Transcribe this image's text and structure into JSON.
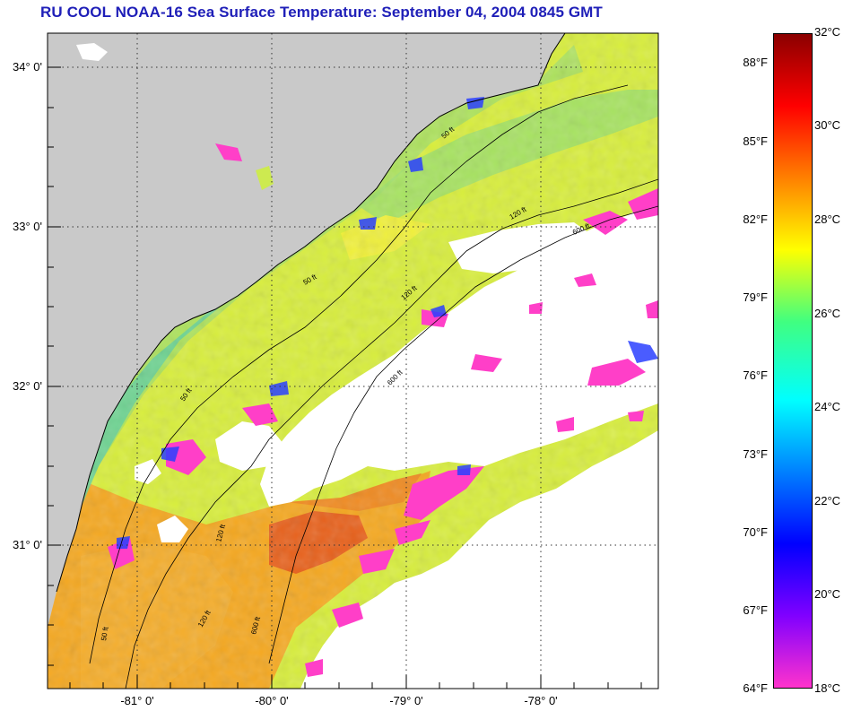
{
  "title": "RU COOL  NOAA-16  Sea Surface Temperature:  September 04, 2004 0845 GMT",
  "map": {
    "lat_labels": [
      "34° 0'",
      "33° 0'",
      "32° 0'",
      "31° 0'"
    ],
    "lon_labels": [
      "-81° 0'",
      "-80° 0'",
      "-79° 0'",
      "-78° 0'"
    ],
    "contour_labels": [
      "50 ft",
      "50 ft",
      "50 ft",
      "50 ft",
      "120 ft",
      "120 ft",
      "120 ft",
      "120 ft",
      "600 ft",
      "600 ft",
      "600 ft"
    ],
    "colors": {
      "land": "#c9c9c9",
      "clouds": "#ffffff",
      "grid": "#333333",
      "coast": "#000000"
    }
  },
  "colorbar": {
    "fahrenheit_labels": [
      "88°F",
      "85°F",
      "82°F",
      "79°F",
      "76°F",
      "73°F",
      "70°F",
      "67°F",
      "64°F"
    ],
    "celsius_labels": [
      "32°C",
      "30°C",
      "28°C",
      "26°C",
      "24°C",
      "22°C",
      "20°C",
      "18°C"
    ],
    "gradient": [
      "#8b0000",
      "#ff0000",
      "#ff8000",
      "#ffff00",
      "#40ff80",
      "#00ffff",
      "#0080ff",
      "#0000ff",
      "#8000ff",
      "#ff33cc"
    ]
  }
}
